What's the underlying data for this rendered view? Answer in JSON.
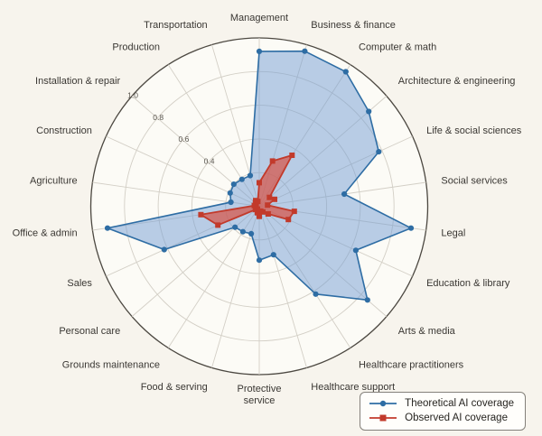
{
  "chart_data": {
    "type": "radar",
    "categories": [
      "Management",
      "Business & finance",
      "Computer & math",
      "Architecture & engineering",
      "Life & social sciences",
      "Social services",
      "Legal",
      "Education & library",
      "Arts & media",
      "Healthcare practitioners",
      "Healthcare support",
      "Protective\nservice",
      "Food & serving",
      "Grounds maintenance",
      "Personal care",
      "Sales",
      "Office & admin",
      "Agriculture",
      "Construction",
      "Installation & repair",
      "Production",
      "Transportation"
    ],
    "series": [
      {
        "name": "Theoretical AI coverage",
        "marker": "circle",
        "color": "#2e6da4",
        "fill": "rgba(116,158,212,0.50)",
        "values": [
          0.92,
          0.96,
          0.95,
          0.86,
          0.78,
          0.51,
          0.91,
          0.63,
          0.85,
          0.62,
          0.3,
          0.32,
          0.17,
          0.18,
          0.19,
          0.62,
          0.91,
          0.17,
          0.19,
          0.2,
          0.19,
          0.19
        ]
      },
      {
        "name": "Observed AI coverage",
        "marker": "square",
        "color": "#c23a2b",
        "fill": "rgba(215,85,72,0.72)",
        "values": [
          0.14,
          0.28,
          0.36,
          0.08,
          0.1,
          0.05,
          0.21,
          0.19,
          0.07,
          0.04,
          0.03,
          0.06,
          0.04,
          0.02,
          0.03,
          0.27,
          0.35,
          0.03,
          0.02,
          0.03,
          0.04,
          0.03
        ]
      }
    ],
    "r_ticks": {
      "labels": [
        "0.4",
        "0.6",
        "0.8",
        "1.0"
      ],
      "values": [
        0.4,
        0.6,
        0.8,
        1.0
      ]
    },
    "rings": [
      0.2,
      0.4,
      0.6,
      0.8,
      1.0
    ],
    "rlim": [
      0,
      1.0
    ],
    "grid": true,
    "legend_position": "bottom-right",
    "colors": {
      "page_bg": "#f7f4ed",
      "circle_fill": "#fcfbf6",
      "grid": "#d3cfc6",
      "outline": "#4c4841",
      "label_text": "#3a3733",
      "tick_text": "#59554e"
    }
  },
  "legend": {
    "items": [
      {
        "label": "Theoretical AI coverage"
      },
      {
        "label": "Observed AI coverage"
      }
    ]
  }
}
